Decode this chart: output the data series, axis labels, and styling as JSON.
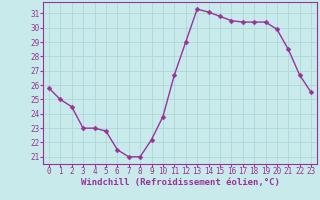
{
  "x": [
    0,
    1,
    2,
    3,
    4,
    5,
    6,
    7,
    8,
    9,
    10,
    11,
    12,
    13,
    14,
    15,
    16,
    17,
    18,
    19,
    20,
    21,
    22,
    23
  ],
  "y": [
    25.8,
    25.0,
    24.5,
    23.0,
    23.0,
    22.8,
    21.5,
    21.0,
    21.0,
    22.2,
    23.8,
    26.7,
    29.0,
    31.3,
    31.1,
    30.8,
    30.5,
    30.4,
    30.4,
    30.4,
    29.9,
    28.5,
    26.7,
    25.5
  ],
  "line_color": "#993399",
  "marker": "D",
  "markersize": 2.5,
  "linewidth": 1.0,
  "background_color": "#c8eaea",
  "grid_color": "#b0d8d8",
  "xlabel": "Windchill (Refroidissement éolien,°C)",
  "xlabel_color": "#993399",
  "tick_color": "#993399",
  "xlim": [
    -0.5,
    23.5
  ],
  "ylim": [
    20.5,
    31.8
  ],
  "yticks": [
    21,
    22,
    23,
    24,
    25,
    26,
    27,
    28,
    29,
    30,
    31
  ],
  "xticks": [
    0,
    1,
    2,
    3,
    4,
    5,
    6,
    7,
    8,
    9,
    10,
    11,
    12,
    13,
    14,
    15,
    16,
    17,
    18,
    19,
    20,
    21,
    22,
    23
  ],
  "tick_fontsize": 5.5,
  "xlabel_fontsize": 6.5
}
